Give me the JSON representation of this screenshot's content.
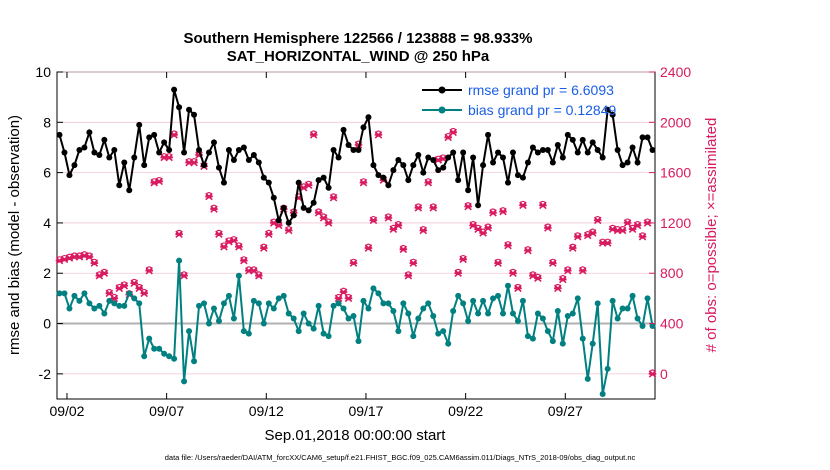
{
  "chart_data": {
    "type": "line",
    "title_line1": "Southern Hemisphere 122566 / 123888 = 98.933%",
    "title_line2": "SAT_HORIZONTAL_WIND @ 250 hPa",
    "xlabel": "Sep.01,2018 00:00:00 start",
    "ylabel_left": "rmse and bias (model - observation)",
    "ylabel_right": "# of obs: o=possible; ×=assimilated",
    "footer": "data file: /Users/raeder/DAI/ATM_forcXX/CAM6_setup/f.e21.FHIST_BGC.f09_025.CAM6assim.011/Diags_NTrS_2018-09/obs_diag_output.nc",
    "xlim": [
      1.0,
      31.0
    ],
    "ylim_left": [
      -3,
      10
    ],
    "ylim_right": [
      -200,
      2400
    ],
    "x_ticks": [
      1.5,
      6.5,
      11.5,
      16.5,
      21.5,
      26.5
    ],
    "x_tick_labels": [
      "09/02",
      "09/07",
      "09/12",
      "09/17",
      "09/22",
      "09/27"
    ],
    "y_left_ticks": [
      -2,
      0,
      2,
      4,
      6,
      8,
      10
    ],
    "y_left_tick_labels": [
      "-2",
      "0",
      "2",
      "4",
      "6",
      "8",
      "10"
    ],
    "y_right_ticks": [
      0,
      400,
      800,
      1200,
      1600,
      2000,
      2400
    ],
    "y_right_tick_labels": [
      "0",
      "400",
      "800",
      "1200",
      "1600",
      "2000",
      "2400"
    ],
    "legend": [
      {
        "label": "rmse grand pr = 6.6093",
        "color": "#000000"
      },
      {
        "label": "bias grand pr = 0.12849",
        "color": "#008080"
      }
    ],
    "colors": {
      "rmse": "#000000",
      "bias": "#008080",
      "obs": "#d81b60",
      "zero": "#b0b0b0",
      "grid": "#f2c6d4"
    },
    "x": [
      1.125,
      1.375,
      1.625,
      1.875,
      2.125,
      2.375,
      2.625,
      2.875,
      3.125,
      3.375,
      3.625,
      3.875,
      4.125,
      4.375,
      4.625,
      4.875,
      5.125,
      5.375,
      5.625,
      5.875,
      6.125,
      6.375,
      6.625,
      6.875,
      7.125,
      7.375,
      7.625,
      7.875,
      8.125,
      8.375,
      8.625,
      8.875,
      9.125,
      9.375,
      9.625,
      9.875,
      10.125,
      10.375,
      10.625,
      10.875,
      11.125,
      11.375,
      11.625,
      11.875,
      12.125,
      12.375,
      12.625,
      12.875,
      13.125,
      13.375,
      13.625,
      13.875,
      14.125,
      14.375,
      14.625,
      14.875,
      15.125,
      15.375,
      15.625,
      15.875,
      16.125,
      16.375,
      16.625,
      16.875,
      17.125,
      17.375,
      17.625,
      17.875,
      18.125,
      18.375,
      18.625,
      18.875,
      19.125,
      19.375,
      19.625,
      19.875,
      20.125,
      20.375,
      20.625,
      20.875,
      21.125,
      21.375,
      21.625,
      21.875,
      22.125,
      22.375,
      22.625,
      22.875,
      23.125,
      23.375,
      23.625,
      23.875,
      24.125,
      24.375,
      24.625,
      24.875,
      25.125,
      25.375,
      25.625,
      25.875,
      26.125,
      26.375,
      26.625,
      26.875,
      27.125,
      27.375,
      27.625,
      27.875,
      28.125,
      28.375,
      28.625,
      28.875,
      29.125,
      29.375,
      29.625,
      29.875,
      30.125,
      30.375,
      30.625,
      30.875
    ],
    "series": [
      {
        "name": "rmse",
        "values": [
          7.5,
          6.8,
          5.9,
          6.3,
          6.9,
          7.0,
          7.6,
          6.8,
          6.7,
          7.3,
          6.6,
          6.9,
          5.5,
          6.4,
          5.3,
          6.6,
          7.9,
          6.3,
          7.4,
          7.5,
          6.8,
          7.2,
          6.9,
          9.3,
          8.6,
          6.8,
          8.5,
          8.3,
          6.9,
          6.3,
          6.8,
          7.2,
          6.2,
          5.6,
          6.9,
          6.5,
          6.9,
          7.0,
          6.5,
          6.7,
          6.4,
          5.8,
          5.6,
          5.0,
          4.1,
          4.6,
          4.0,
          4.3,
          5.6,
          4.6,
          4.5,
          4.8,
          5.7,
          5.8,
          5.4,
          6.9,
          6.6,
          7.7,
          7.1,
          6.9,
          6.9,
          7.8,
          8.2,
          6.3,
          5.9,
          5.8,
          5.5,
          6.1,
          6.5,
          6.3,
          5.7,
          6.3,
          6.7,
          6.0,
          6.6,
          6.5,
          6.1,
          6.2,
          6.6,
          6.8,
          5.7,
          6.8,
          5.3,
          6.6,
          4.7,
          6.3,
          7.5,
          6.4,
          6.8,
          6.6,
          5.6,
          6.8,
          5.9,
          5.8,
          6.4,
          7.0,
          6.8,
          6.9,
          6.9,
          6.4,
          7.1,
          6.6,
          7.5,
          7.3,
          6.8,
          7.3,
          6.8,
          7.2,
          6.9,
          6.6,
          8.5,
          8.3,
          6.9,
          6.3,
          6.4,
          7.0,
          6.4,
          7.4,
          7.4,
          6.9
        ]
      },
      {
        "name": "bias",
        "values": [
          1.2,
          1.2,
          0.6,
          1.1,
          0.9,
          1.2,
          0.8,
          0.6,
          0.7,
          0.4,
          0.9,
          0.8,
          0.7,
          0.7,
          1.2,
          1.0,
          0.8,
          -1.3,
          -0.6,
          -1.0,
          -1.0,
          -1.2,
          -1.3,
          -1.4,
          2.5,
          -2.3,
          -0.3,
          -1.5,
          0.7,
          0.8,
          0.0,
          0.6,
          0.1,
          0.8,
          1.1,
          0.2,
          1.9,
          -0.3,
          -0.4,
          0.9,
          0.8,
          0.0,
          0.8,
          0.6,
          1.0,
          1.1,
          0.4,
          0.2,
          -0.3,
          0.4,
          0.0,
          -0.2,
          0.7,
          -0.4,
          -0.5,
          0.7,
          0.8,
          0.6,
          0.2,
          0.3,
          -0.7,
          0.9,
          0.6,
          1.4,
          1.2,
          0.8,
          0.8,
          0.5,
          -0.3,
          0.8,
          0.4,
          -0.5,
          0.2,
          0.6,
          0.8,
          0.3,
          -0.4,
          -0.3,
          -0.8,
          0.5,
          1.1,
          0.8,
          0.1,
          0.9,
          0.4,
          0.9,
          0.4,
          1.0,
          1.1,
          0.4,
          1.5,
          0.4,
          0.1,
          0.9,
          -0.5,
          -0.6,
          0.4,
          0.2,
          -0.3,
          -0.7,
          0.5,
          -0.8,
          0.3,
          0.4,
          1.0,
          -0.6,
          -2.2,
          -0.8,
          0.8,
          -2.8,
          -1.8,
          0.9,
          0.2,
          0.6,
          0.6,
          1.1,
          0.2,
          -0.1,
          1.0,
          -0.1
        ]
      },
      {
        "name": "obs_assimilated",
        "values": [
          900,
          910,
          920,
          930,
          930,
          940,
          930,
          880,
          780,
          800,
          640,
          600,
          680,
          700,
          630,
          720,
          680,
          640,
          820,
          1520,
          1530,
          1720,
          1720,
          1900,
          1110,
          780,
          1680,
          1680,
          1740,
          1650,
          1410,
          1310,
          1110,
          1010,
          1050,
          1060,
          1010,
          900,
          820,
          820,
          780,
          1000,
          1110,
          1200,
          1180,
          1310,
          1140,
          1280,
          1400,
          1480,
          1500,
          1900,
          1280,
          1240,
          1200,
          1400,
          600,
          650,
          600,
          880,
          1820,
          1520,
          1000,
          1220,
          1900,
          1540,
          1240,
          1150,
          1180,
          990,
          780,
          880,
          1320,
          1140,
          1520,
          1320,
          1700,
          1710,
          1880,
          1920,
          800,
          910,
          1330,
          1180,
          1150,
          1120,
          1160,
          1280,
          880,
          1290,
          1020,
          800,
          680,
          1340,
          980,
          780,
          760,
          1340,
          1160,
          880,
          680,
          750,
          820,
          1000,
          1090,
          820,
          1100,
          1120,
          1220,
          1040,
          1040,
          1150,
          1140,
          1140,
          1200,
          1150,
          1180,
          1090,
          1200,
          0
        ]
      },
      {
        "name": "obs_possible",
        "values": [
          910,
          920,
          930,
          940,
          940,
          950,
          940,
          890,
          790,
          810,
          650,
          610,
          690,
          710,
          640,
          730,
          690,
          650,
          830,
          1530,
          1540,
          1730,
          1730,
          1910,
          1120,
          790,
          1690,
          1690,
          1750,
          1660,
          1420,
          1320,
          1120,
          1020,
          1060,
          1070,
          1020,
          910,
          830,
          830,
          790,
          1010,
          1120,
          1210,
          1190,
          1320,
          1150,
          1290,
          1410,
          1490,
          1510,
          1910,
          1290,
          1250,
          1210,
          1410,
          610,
          660,
          610,
          890,
          1830,
          1530,
          1010,
          1230,
          1910,
          1550,
          1250,
          1160,
          1190,
          1000,
          790,
          890,
          1330,
          1150,
          1530,
          1330,
          1710,
          1720,
          1890,
          1930,
          810,
          920,
          1340,
          1190,
          1160,
          1130,
          1170,
          1290,
          890,
          1300,
          1030,
          810,
          690,
          1350,
          990,
          790,
          770,
          1350,
          1170,
          890,
          690,
          760,
          830,
          1010,
          1100,
          830,
          1110,
          1130,
          1230,
          1050,
          1050,
          1160,
          1150,
          1150,
          1210,
          1160,
          1190,
          1100,
          1210,
          10
        ]
      }
    ]
  }
}
